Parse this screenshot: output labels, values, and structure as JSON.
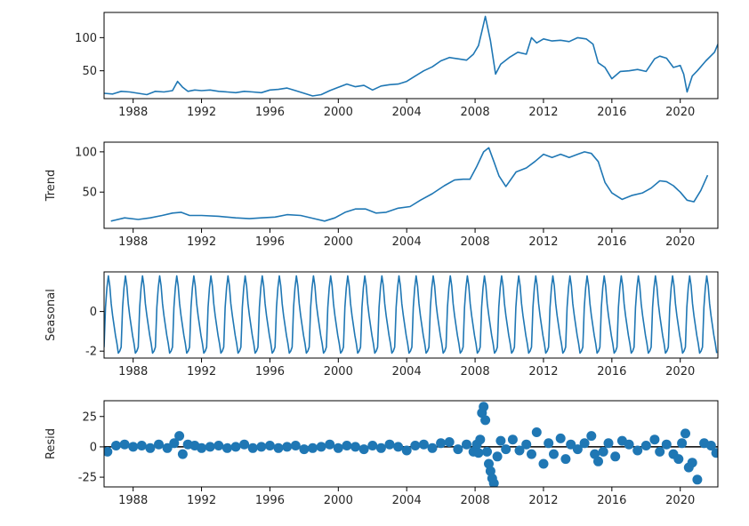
{
  "colors": {
    "series": "#1f77b4",
    "axis": "#000000",
    "text": "#262626",
    "zero_line": "#000000"
  },
  "x_ticks": [
    "1988",
    "1992",
    "1996",
    "2000",
    "2004",
    "2008",
    "2012",
    "2016",
    "2020"
  ],
  "chart_data": [
    {
      "type": "line",
      "panel": "observed",
      "title": "",
      "xlabel": "",
      "ylabel": "",
      "xlim": [
        1986.3,
        2022.2
      ],
      "ylim": [
        8,
        138
      ],
      "yticks": [
        50,
        100
      ],
      "grid": false,
      "x": [
        1986.3,
        1986.8,
        1987.3,
        1987.8,
        1988.3,
        1988.8,
        1989.3,
        1989.8,
        1990.3,
        1990.6,
        1990.9,
        1991.2,
        1991.6,
        1992.0,
        1992.5,
        1993.0,
        1993.5,
        1994.0,
        1994.5,
        1995.0,
        1995.5,
        1996.0,
        1996.5,
        1997.0,
        1997.5,
        1998.0,
        1998.5,
        1999.0,
        1999.5,
        2000.0,
        2000.5,
        2001.0,
        2001.5,
        2002.0,
        2002.5,
        2003.0,
        2003.5,
        2004.0,
        2004.5,
        2005.0,
        2005.5,
        2006.0,
        2006.5,
        2007.0,
        2007.5,
        2007.9,
        2008.2,
        2008.4,
        2008.6,
        2008.9,
        2009.2,
        2009.5,
        2010.0,
        2010.5,
        2011.0,
        2011.3,
        2011.6,
        2012.0,
        2012.5,
        2013.0,
        2013.5,
        2014.0,
        2014.5,
        2014.9,
        2015.2,
        2015.6,
        2016.0,
        2016.5,
        2017.0,
        2017.5,
        2018.0,
        2018.5,
        2018.8,
        2019.2,
        2019.6,
        2020.0,
        2020.2,
        2020.4,
        2020.7,
        2021.0,
        2021.5,
        2022.0,
        2022.2
      ],
      "y": [
        16,
        15,
        19,
        18,
        16,
        14,
        19,
        18,
        20,
        34,
        25,
        19,
        21,
        20,
        21,
        19,
        18,
        17,
        19,
        18,
        17,
        21,
        22,
        24,
        20,
        16,
        12,
        14,
        20,
        25,
        30,
        26,
        28,
        21,
        27,
        29,
        30,
        34,
        42,
        50,
        56,
        65,
        70,
        68,
        66,
        75,
        88,
        110,
        132,
        95,
        45,
        60,
        70,
        78,
        75,
        100,
        92,
        98,
        95,
        96,
        94,
        100,
        98,
        90,
        62,
        55,
        38,
        49,
        50,
        52,
        49,
        68,
        72,
        69,
        55,
        58,
        45,
        18,
        42,
        50,
        65,
        78,
        90
      ]
    },
    {
      "type": "line",
      "panel": "trend",
      "title": "",
      "xlabel": "",
      "ylabel": "Trend",
      "xlim": [
        1986.3,
        2022.2
      ],
      "ylim": [
        5,
        112
      ],
      "yticks": [
        50,
        100
      ],
      "grid": false,
      "x": [
        1986.7,
        1987.5,
        1988.3,
        1989.0,
        1989.7,
        1990.3,
        1990.8,
        1991.3,
        1992.0,
        1993.0,
        1994.0,
        1994.8,
        1995.5,
        1996.3,
        1997.0,
        1997.8,
        1998.6,
        1999.2,
        1999.8,
        2000.4,
        2001.0,
        2001.6,
        2002.2,
        2002.8,
        2003.5,
        2004.2,
        2004.8,
        2005.5,
        2006.2,
        2006.8,
        2007.3,
        2007.7,
        2008.1,
        2008.5,
        2008.8,
        2009.1,
        2009.4,
        2009.8,
        2010.4,
        2011.0,
        2011.5,
        2012.0,
        2012.5,
        2013.0,
        2013.5,
        2014.0,
        2014.4,
        2014.8,
        2015.2,
        2015.6,
        2016.0,
        2016.6,
        2017.2,
        2017.8,
        2018.3,
        2018.8,
        2019.2,
        2019.6,
        2020.0,
        2020.4,
        2020.8,
        2021.2,
        2021.6
      ],
      "y": [
        14,
        18,
        16,
        18,
        21,
        24,
        25,
        21,
        21,
        20,
        18,
        17,
        18,
        19,
        22,
        21,
        17,
        14,
        18,
        25,
        29,
        29,
        24,
        25,
        30,
        32,
        40,
        48,
        58,
        65,
        66,
        66,
        82,
        100,
        105,
        88,
        70,
        57,
        75,
        80,
        88,
        97,
        93,
        97,
        93,
        97,
        100,
        98,
        88,
        62,
        49,
        41,
        46,
        49,
        55,
        64,
        63,
        58,
        50,
        40,
        38,
        52,
        71
      ]
    },
    {
      "type": "line",
      "panel": "seasonal",
      "title": "",
      "xlabel": "",
      "ylabel": "Seasonal",
      "xlim": [
        1986.3,
        2022.2
      ],
      "ylim": [
        -2.35,
        2.0
      ],
      "yticks": [
        -2,
        0
      ],
      "grid": false,
      "period_years": 1,
      "start_year": 1986.3,
      "end_year": 2022.2,
      "cycle_pattern": [
        -1.8,
        0.2,
        1.2,
        1.8,
        1.3,
        0.4,
        -0.2,
        -0.7,
        -1.2,
        -1.6,
        -2.1,
        -2.0
      ],
      "note": ""
    },
    {
      "type": "scatter",
      "panel": "resid",
      "title": "",
      "xlabel": "",
      "ylabel": "Resid",
      "xlim": [
        1986.3,
        2022.2
      ],
      "ylim": [
        -33,
        38
      ],
      "yticks": [
        -25,
        0,
        25
      ],
      "grid": false,
      "zero_line": true,
      "x": [
        1986.5,
        1987.0,
        1987.5,
        1988.0,
        1988.5,
        1989.0,
        1989.5,
        1990.0,
        1990.4,
        1990.7,
        1990.9,
        1991.2,
        1991.6,
        1992.0,
        1992.5,
        1993.0,
        1993.5,
        1994.0,
        1994.5,
        1995.0,
        1995.5,
        1996.0,
        1996.5,
        1997.0,
        1997.5,
        1998.0,
        1998.5,
        1999.0,
        1999.5,
        2000.0,
        2000.5,
        2001.0,
        2001.5,
        2002.0,
        2002.5,
        2003.0,
        2003.5,
        2004.0,
        2004.5,
        2005.0,
        2005.5,
        2006.0,
        2006.5,
        2007.0,
        2007.5,
        2007.9,
        2008.1,
        2008.2,
        2008.3,
        2008.4,
        2008.5,
        2008.6,
        2008.7,
        2008.8,
        2008.9,
        2009.0,
        2009.1,
        2009.3,
        2009.5,
        2009.8,
        2010.2,
        2010.6,
        2011.0,
        2011.3,
        2011.6,
        2012.0,
        2012.3,
        2012.6,
        2013.0,
        2013.3,
        2013.6,
        2014.0,
        2014.4,
        2014.8,
        2015.0,
        2015.2,
        2015.5,
        2015.8,
        2016.2,
        2016.6,
        2017.0,
        2017.5,
        2018.0,
        2018.5,
        2018.8,
        2019.2,
        2019.6,
        2019.9,
        2020.1,
        2020.3,
        2020.5,
        2020.7,
        2021.0,
        2021.4,
        2021.8,
        2022.1
      ],
      "y": [
        -4,
        1,
        2,
        0,
        1,
        -1,
        2,
        -1,
        3,
        9,
        -6,
        2,
        1,
        -1,
        0,
        1,
        -1,
        0,
        2,
        -1,
        0,
        1,
        -1,
        0,
        1,
        -2,
        -1,
        0,
        2,
        -1,
        1,
        0,
        -2,
        1,
        -1,
        2,
        0,
        -3,
        1,
        2,
        -1,
        3,
        4,
        -2,
        2,
        -4,
        2,
        -5,
        6,
        28,
        33,
        22,
        -4,
        -14,
        -20,
        -26,
        -30,
        -8,
        5,
        -2,
        6,
        -3,
        2,
        -6,
        12,
        -14,
        3,
        -6,
        7,
        -10,
        2,
        -2,
        3,
        9,
        -6,
        -12,
        -4,
        3,
        -8,
        5,
        2,
        -3,
        1,
        6,
        -4,
        2,
        -6,
        -10,
        3,
        11,
        -17,
        -13,
        -27,
        3,
        1,
        -5
      ]
    }
  ]
}
